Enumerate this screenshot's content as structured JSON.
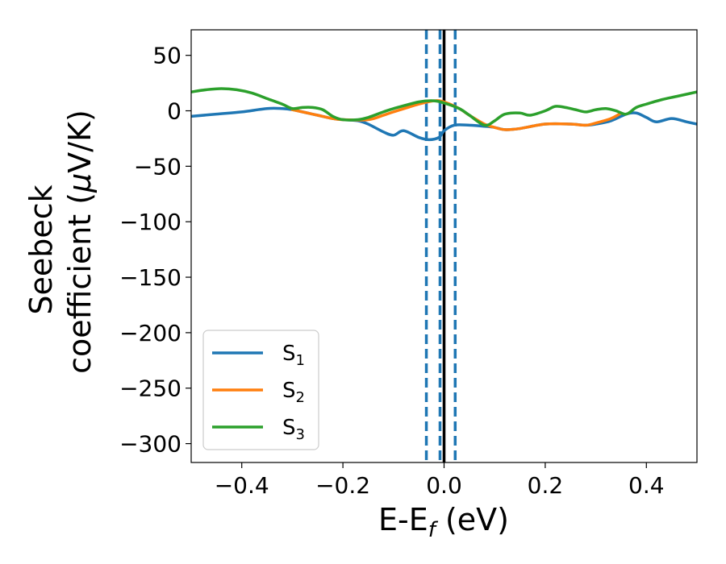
{
  "chart_data": {
    "type": "line",
    "xlabel": "E-E",
    "xlabel_sub": "f",
    "xlabel_unit": " (eV)",
    "ylabel_line1": "Seebeck",
    "ylabel_line2": "coefficient  (",
    "ylabel_mu": "μ",
    "ylabel_unit": "V/K)",
    "xlim": [
      -0.5,
      0.5
    ],
    "ylim": [
      -317,
      73
    ],
    "xticks": [
      -0.4,
      -0.2,
      0.0,
      0.2,
      0.4
    ],
    "xtick_labels": [
      "−0.4",
      "−0.2",
      "0.0",
      "0.2",
      "0.4"
    ],
    "yticks": [
      50,
      0,
      -50,
      -100,
      -150,
      -200,
      -250,
      -300
    ],
    "ytick_labels": [
      "50",
      "0",
      "−50",
      "−100",
      "−150",
      "−200",
      "−250",
      "−300"
    ],
    "grid": false,
    "legend_position": "lower-left",
    "vlines": [
      {
        "x": 0.0,
        "style": "solid",
        "color": "#000000"
      },
      {
        "x": -0.035,
        "style": "dashed",
        "color": "#1f77b4"
      },
      {
        "x": -0.008,
        "style": "dashed",
        "color": "#1f77b4"
      },
      {
        "x": 0.022,
        "style": "dashed",
        "color": "#1f77b4"
      }
    ],
    "series": [
      {
        "name": "S",
        "sub": "1",
        "color": "#1f77b4",
        "x": [
          -0.5,
          -0.45,
          -0.4,
          -0.35,
          -0.32,
          -0.3,
          -0.27,
          -0.25,
          -0.22,
          -0.2,
          -0.17,
          -0.15,
          -0.12,
          -0.1,
          -0.08,
          -0.05,
          -0.03,
          -0.01,
          0.0,
          0.02,
          0.05,
          0.08,
          0.1,
          0.12,
          0.15,
          0.2,
          0.25,
          0.28,
          0.3,
          0.33,
          0.36,
          0.38,
          0.4,
          0.42,
          0.45,
          0.48,
          0.5
        ],
        "y": [
          -5,
          -3,
          -1,
          2,
          2,
          1,
          -2,
          -4,
          -7,
          -8,
          -9,
          -12,
          -19,
          -22,
          -18,
          -24,
          -26,
          -24,
          -18,
          -13,
          -13,
          -14,
          -15,
          -17,
          -16,
          -12,
          -12,
          -13,
          -12,
          -9,
          -3,
          -2,
          -6,
          -10,
          -7,
          -10,
          -12
        ]
      },
      {
        "name": "S",
        "sub": "2",
        "color": "#ff7f0e",
        "x": [
          -0.3,
          -0.27,
          -0.25,
          -0.22,
          -0.2,
          -0.15,
          -0.12,
          -0.1,
          -0.05,
          -0.02,
          0.0,
          0.03,
          0.05,
          0.08,
          0.1,
          0.12,
          0.15,
          0.2,
          0.25,
          0.28,
          0.3,
          0.33,
          0.35
        ],
        "y": [
          1,
          -2,
          -4,
          -7,
          -8,
          -8,
          -4,
          -1,
          6,
          9,
          8,
          2,
          -4,
          -12,
          -15,
          -17,
          -16,
          -12,
          -12,
          -13,
          -11,
          -7,
          -2
        ]
      },
      {
        "name": "S",
        "sub": "3",
        "color": "#2ca02c",
        "x": [
          -0.5,
          -0.47,
          -0.44,
          -0.41,
          -0.38,
          -0.35,
          -0.32,
          -0.3,
          -0.28,
          -0.26,
          -0.24,
          -0.22,
          -0.2,
          -0.17,
          -0.15,
          -0.12,
          -0.1,
          -0.05,
          -0.02,
          0.0,
          0.03,
          0.05,
          0.08,
          0.1,
          0.12,
          0.15,
          0.17,
          0.2,
          0.22,
          0.24,
          0.26,
          0.28,
          0.3,
          0.32,
          0.34,
          0.36,
          0.38,
          0.4,
          0.43,
          0.46,
          0.5
        ],
        "y": [
          17,
          19,
          20,
          19,
          16,
          11,
          6,
          2,
          3,
          3,
          1,
          -5,
          -8,
          -8,
          -6,
          -1,
          2,
          8,
          9,
          7,
          2,
          -4,
          -13,
          -9,
          -3,
          -2,
          -4,
          0,
          4,
          3,
          1,
          -1,
          1,
          2,
          0,
          -3,
          3,
          6,
          10,
          13,
          17
        ]
      }
    ]
  }
}
